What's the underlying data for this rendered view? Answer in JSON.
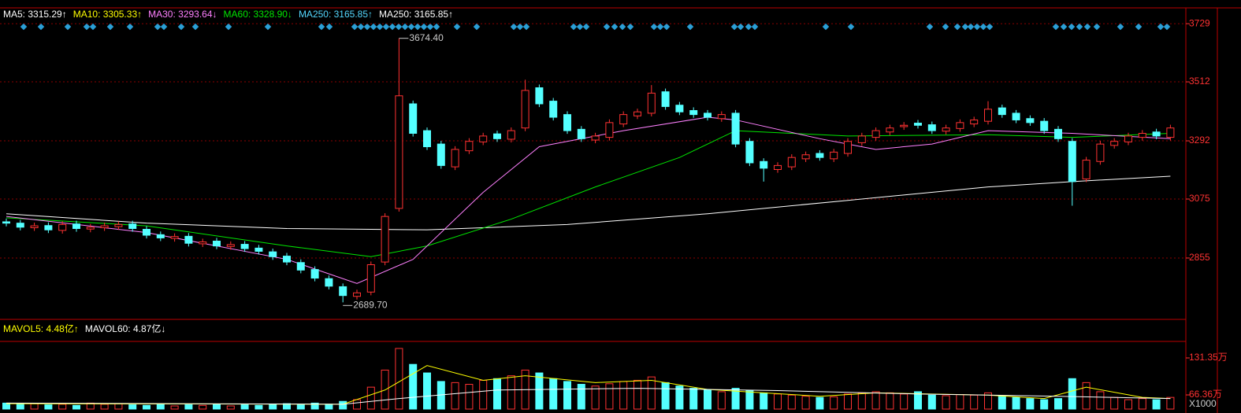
{
  "chart_data": [
    {
      "type": "candlestick",
      "indicators": [
        {
          "label": "MA5: 3315.29↑",
          "color": "#ffffff"
        },
        {
          "label": "MA10: 3305.33↑",
          "color": "#ffff00"
        },
        {
          "label": "MA30: 3293.64↓",
          "color": "#ff80ff"
        },
        {
          "label": "MA60: 3328.90↓",
          "color": "#00e600"
        },
        {
          "label": "MA250: 3165.85↑",
          "color": "#54d8ff"
        },
        {
          "label": "MA250: 3165.85↑",
          "color": "#ffffff"
        }
      ],
      "up_color": "#ff3232",
      "down_color": "#54ffff",
      "open": [
        2990,
        2985,
        2968,
        2976,
        2958,
        2982,
        2963,
        2968,
        2972,
        2982,
        2962,
        2942,
        2928,
        2936,
        2908,
        2918,
        2898,
        2906,
        2892,
        2878,
        2862,
        2838,
        2812,
        2778,
        2748,
        2712,
        2728,
        2840,
        3040,
        3430,
        3330,
        3280,
        3195,
        3255,
        3288,
        3318,
        3298,
        3340,
        3490,
        3440,
        3390,
        3335,
        3295,
        3305,
        3355,
        3385,
        3395,
        3475,
        3425,
        3405,
        3395,
        3375,
        3395,
        3290,
        3215,
        3185,
        3195,
        3225,
        3245,
        3225,
        3245,
        3285,
        3305,
        3325,
        3345,
        3358,
        3352,
        3328,
        3338,
        3355,
        3365,
        3415,
        3395,
        3375,
        3365,
        3335,
        3290,
        3150,
        3215,
        3275,
        3288,
        3305,
        3325,
        3305
      ],
      "high": [
        3002,
        2997,
        2987,
        2988,
        2992,
        2994,
        2982,
        2987,
        2992,
        2994,
        2974,
        2954,
        2947,
        2948,
        2927,
        2930,
        2917,
        2918,
        2904,
        2890,
        2874,
        2850,
        2824,
        2790,
        2760,
        2737,
        2842,
        3022,
        3674.4,
        3442,
        3342,
        3292,
        3272,
        3302,
        3322,
        3330,
        3342,
        3520,
        3502,
        3452,
        3402,
        3347,
        3322,
        3372,
        3402,
        3412,
        3500,
        3487,
        3437,
        3417,
        3407,
        3402,
        3407,
        3302,
        3227,
        3212,
        3242,
        3252,
        3257,
        3262,
        3302,
        3322,
        3342,
        3352,
        3362,
        3370,
        3364,
        3352,
        3372,
        3382,
        3440,
        3427,
        3407,
        3387,
        3377,
        3347,
        3302,
        3232,
        3292,
        3302,
        3322,
        3332,
        3337,
        3352
      ],
      "low": [
        2973,
        2958,
        2956,
        2948,
        2946,
        2953,
        2951,
        2956,
        2960,
        2953,
        2928,
        2918,
        2916,
        2898,
        2896,
        2888,
        2886,
        2878,
        2868,
        2848,
        2828,
        2798,
        2768,
        2738,
        2689.7,
        2700,
        2716,
        2828,
        3028,
        3308,
        3258,
        3188,
        3183,
        3243,
        3276,
        3288,
        3286,
        3328,
        3418,
        3368,
        3318,
        3288,
        3283,
        3293,
        3343,
        3373,
        3383,
        3408,
        3388,
        3378,
        3368,
        3363,
        3268,
        3198,
        3140,
        3173,
        3183,
        3213,
        3218,
        3213,
        3233,
        3273,
        3293,
        3313,
        3333,
        3338,
        3318,
        3316,
        3326,
        3343,
        3353,
        3378,
        3358,
        3348,
        3318,
        3288,
        3050,
        3138,
        3203,
        3263,
        3276,
        3293,
        3298,
        3293
      ],
      "close": [
        2985,
        2970,
        2975,
        2960,
        2980,
        2965,
        2970,
        2975,
        2980,
        2965,
        2940,
        2930,
        2935,
        2910,
        2915,
        2900,
        2905,
        2890,
        2880,
        2860,
        2840,
        2810,
        2780,
        2750,
        2715,
        2725,
        2830,
        3010,
        3460,
        3320,
        3270,
        3200,
        3260,
        3290,
        3310,
        3300,
        3330,
        3480,
        3430,
        3380,
        3330,
        3300,
        3310,
        3360,
        3390,
        3400,
        3470,
        3420,
        3400,
        3390,
        3380,
        3390,
        3280,
        3210,
        3190,
        3200,
        3230,
        3240,
        3230,
        3250,
        3290,
        3310,
        3330,
        3340,
        3350,
        3350,
        3330,
        3340,
        3360,
        3370,
        3410,
        3390,
        3370,
        3360,
        3330,
        3300,
        3140,
        3220,
        3280,
        3290,
        3310,
        3320,
        3310,
        3340
      ],
      "lines": [
        {
          "name": "MA250",
          "color": "#ffffff",
          "x": [
            0,
            10,
            20,
            30,
            40,
            50,
            60,
            70,
            76,
            83
          ],
          "values": [
            3020,
            2985,
            2965,
            2960,
            2980,
            3020,
            3070,
            3120,
            3140,
            3160
          ]
        },
        {
          "name": "MA60",
          "color": "#00e600",
          "x": [
            0,
            10,
            20,
            26,
            30,
            36,
            42,
            48,
            52,
            60,
            70,
            76,
            83
          ],
          "values": [
            3005,
            2975,
            2900,
            2860,
            2900,
            3000,
            3120,
            3230,
            3330,
            3310,
            3315,
            3305,
            3320
          ]
        },
        {
          "name": "MA30",
          "color": "#ff80ff",
          "x": [
            0,
            10,
            20,
            25,
            29,
            34,
            38,
            44,
            50,
            52,
            58,
            62,
            66,
            70,
            76,
            83
          ],
          "values": [
            3010,
            2950,
            2850,
            2760,
            2850,
            3100,
            3270,
            3330,
            3380,
            3370,
            3300,
            3260,
            3280,
            3330,
            3320,
            3300
          ]
        }
      ],
      "annotations": [
        {
          "text": "3674.40",
          "index": 28,
          "value": 3674.4
        },
        {
          "text": "2689.70",
          "index": 24,
          "value": 2689.7
        }
      ],
      "ylim": [
        2629,
        3741
      ],
      "yticks": [
        2855,
        3075,
        3292,
        3512,
        3729
      ],
      "grid": true
    },
    {
      "type": "bar",
      "indicators": [
        {
          "label": "MAVOL5: 4.48亿↑",
          "color": "#ffff00"
        },
        {
          "label": "MAVOL60: 4.87亿↓",
          "color": "#ffffff"
        }
      ],
      "values": [
        52,
        50,
        51,
        49,
        50,
        48,
        52,
        50,
        51,
        49,
        48,
        50,
        47,
        49,
        48,
        50,
        47,
        49,
        48,
        50,
        51,
        49,
        52,
        50,
        55,
        58,
        80,
        110,
        148,
        120,
        105,
        90,
        88,
        85,
        92,
        95,
        100,
        110,
        105,
        95,
        90,
        85,
        82,
        86,
        90,
        92,
        98,
        88,
        82,
        78,
        75,
        72,
        78,
        74,
        70,
        68,
        66,
        64,
        62,
        63,
        68,
        70,
        72,
        70,
        68,
        72,
        66,
        65,
        67,
        66,
        70,
        64,
        62,
        60,
        58,
        60,
        95,
        88,
        72,
        62,
        58,
        60,
        58,
        62
      ],
      "lines": [
        {
          "name": "MAVOL5",
          "color": "#ffff00",
          "x": [
            0,
            24,
            27,
            30,
            34,
            37,
            42,
            46,
            50,
            54,
            58,
            62,
            66,
            70,
            74,
            77,
            81,
            83
          ],
          "values": [
            51,
            50,
            75,
            118,
            92,
            100,
            88,
            92,
            76,
            70,
            64,
            70,
            68,
            66,
            60,
            80,
            62,
            60
          ]
        },
        {
          "name": "MAVOL60",
          "color": "#ffffff",
          "x": [
            0,
            24,
            28,
            35,
            45,
            55,
            65,
            75,
            83
          ],
          "values": [
            52,
            50,
            60,
            75,
            78,
            74,
            68,
            64,
            60
          ]
        }
      ],
      "unit_label": "X1000",
      "ylim": [
        41.5,
        159
      ],
      "yticks": [
        {
          "value": 66.36,
          "label": "66.36万"
        },
        {
          "value": 131.35,
          "label": "131.35万"
        }
      ]
    }
  ]
}
